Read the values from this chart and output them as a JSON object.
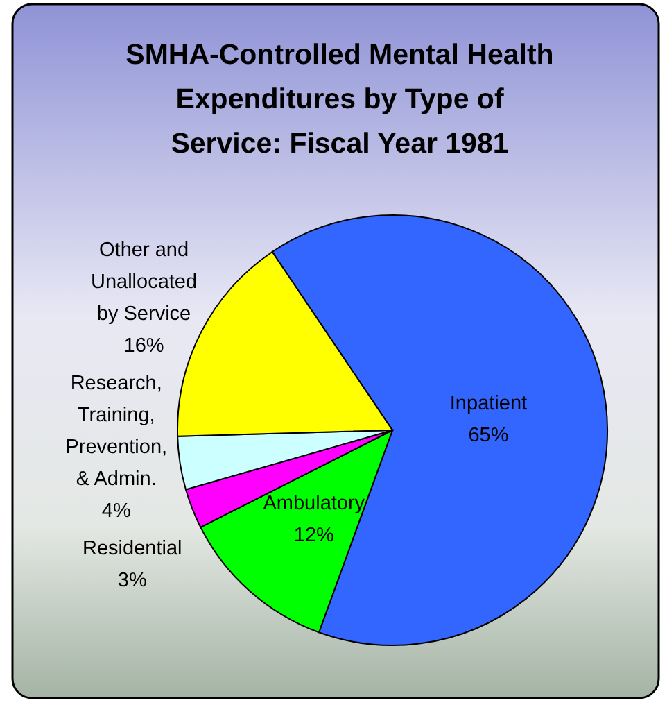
{
  "chart_data": {
    "type": "pie",
    "title": "SMHA-Controlled Mental Health Expenditures by Type of Service: Fiscal Year 1981",
    "categories": [
      "Inpatient",
      "Ambulatory",
      "Residential",
      "Research, Training, Prevention, & Admin.",
      "Other and Unallocated by Service"
    ],
    "values": [
      65,
      12,
      3,
      4,
      16
    ],
    "value_labels": [
      "65%",
      "12%",
      "3%",
      "4%",
      "16%"
    ],
    "colors": [
      "#3366ff",
      "#00ff00",
      "#ff00ff",
      "#ccffff",
      "#ffff00"
    ]
  }
}
